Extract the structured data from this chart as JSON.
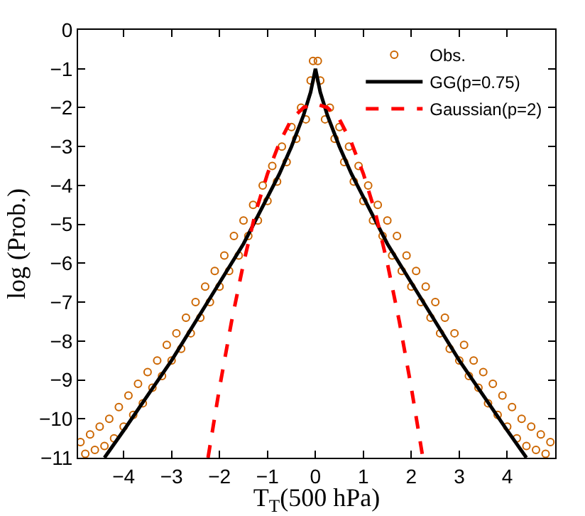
{
  "chart_data": {
    "type": "scatter",
    "xlabel": "T$_{T}$(500 hPa)",
    "ylabel": "log (Prob.)",
    "xlim": [
      -4.95,
      5
    ],
    "xticks": [
      {
        "value": -4,
        "label": "−4"
      },
      {
        "value": -3,
        "label": "−3"
      },
      {
        "value": -2,
        "label": "−2"
      },
      {
        "value": -1,
        "label": "−1"
      },
      0,
      1,
      2,
      3,
      4
    ],
    "ylim": [
      -11,
      0
    ],
    "yticks": [
      {
        "value": -11,
        "label": "−11"
      },
      {
        "value": -10,
        "label": "−10"
      },
      {
        "value": -9,
        "label": "−9"
      },
      {
        "value": -8,
        "label": "−8"
      },
      {
        "value": -7,
        "label": "−7"
      },
      {
        "value": -6,
        "label": "−6"
      },
      {
        "value": -5,
        "label": "−5"
      },
      {
        "value": -4,
        "label": "−4"
      },
      {
        "value": -3,
        "label": "−3"
      },
      {
        "value": -2,
        "label": "−2"
      },
      {
        "value": -1,
        "label": "−1"
      },
      0
    ],
    "grid": false,
    "legend": "top right",
    "series": [
      {
        "name": "Obs.",
        "marker": "circle",
        "color": "#cc6600",
        "x": [
          -4.9,
          -4.8,
          -4.7,
          -4.6,
          -4.5,
          -4.4,
          -4.3,
          -4.2,
          -4.1,
          -4.0,
          -3.9,
          -3.8,
          -3.7,
          -3.6,
          -3.5,
          -3.4,
          -3.3,
          -3.2,
          -3.1,
          -3.0,
          -2.9,
          -2.8,
          -2.7,
          -2.6,
          -2.5,
          -2.4,
          -2.3,
          -2.2,
          -2.1,
          -2.0,
          -1.9,
          -1.8,
          -1.7,
          -1.6,
          -1.5,
          -1.4,
          -1.3,
          -1.2,
          -1.1,
          -1.0,
          -0.9,
          -0.8,
          -0.7,
          -0.6,
          -0.5,
          -0.4,
          -0.3,
          -0.2,
          -0.1,
          -0.05,
          0.05,
          0.1,
          0.2,
          0.3,
          0.4,
          0.5,
          0.6,
          0.7,
          0.8,
          0.9,
          1.0,
          1.1,
          1.2,
          1.3,
          1.4,
          1.5,
          1.6,
          1.7,
          1.8,
          1.9,
          2.0,
          2.1,
          2.2,
          2.3,
          2.4,
          2.5,
          2.6,
          2.7,
          2.8,
          2.9,
          3.0,
          3.1,
          3.2,
          3.3,
          3.4,
          3.5,
          3.6,
          3.7,
          3.8,
          3.9,
          4.0,
          4.1,
          4.2,
          4.3,
          4.4,
          4.5,
          4.6,
          4.7,
          4.8,
          4.9
        ],
        "values": [
          -10.6,
          -10.9,
          -10.4,
          -10.8,
          -10.2,
          -10.7,
          -10.0,
          -10.5,
          -9.7,
          -10.2,
          -9.4,
          -9.9,
          -9.1,
          -9.6,
          -8.8,
          -9.2,
          -8.5,
          -8.9,
          -8.1,
          -8.5,
          -7.8,
          -8.2,
          -7.4,
          -7.8,
          -7.0,
          -7.4,
          -6.6,
          -7.0,
          -6.2,
          -6.6,
          -5.8,
          -6.2,
          -5.3,
          -5.8,
          -4.9,
          -5.3,
          -4.5,
          -4.9,
          -4.0,
          -4.4,
          -3.5,
          -3.9,
          -3.0,
          -3.4,
          -2.5,
          -2.8,
          -2.0,
          -2.3,
          -1.3,
          -0.8,
          -0.8,
          -1.3,
          -2.3,
          -2.0,
          -2.8,
          -2.5,
          -3.4,
          -3.0,
          -3.9,
          -3.5,
          -4.4,
          -4.0,
          -4.9,
          -4.5,
          -5.3,
          -4.9,
          -5.8,
          -5.3,
          -6.2,
          -5.8,
          -6.6,
          -6.2,
          -7.0,
          -6.6,
          -7.4,
          -7.0,
          -7.8,
          -7.4,
          -8.2,
          -7.8,
          -8.5,
          -8.1,
          -8.9,
          -8.5,
          -9.2,
          -8.8,
          -9.6,
          -9.1,
          -9.9,
          -9.4,
          -10.2,
          -9.7,
          -10.5,
          -10.0,
          -10.7,
          -10.2,
          -10.8,
          -10.4,
          -10.9,
          -10.6
        ]
      },
      {
        "name": "GG(p=0.75)",
        "type": "line",
        "marker": "none",
        "line_style": "solid",
        "color": "#000000",
        "x": [
          -4.4,
          -4,
          -3.5,
          -3,
          -2.5,
          -2,
          -1.5,
          -1,
          -0.75,
          -0.5,
          -0.25,
          -0.1,
          0,
          0.1,
          0.25,
          0.5,
          0.75,
          1,
          1.5,
          2,
          2.5,
          3,
          3.5,
          4,
          4.4
        ],
        "values": [
          -11.0,
          -10.3,
          -9.4,
          -8.5,
          -7.5,
          -6.5,
          -5.5,
          -4.3,
          -3.7,
          -3.0,
          -2.2,
          -1.6,
          -1.0,
          -1.6,
          -2.2,
          -3.0,
          -3.7,
          -4.3,
          -5.5,
          -6.5,
          -7.5,
          -8.5,
          -9.4,
          -10.3,
          -11.0
        ]
      },
      {
        "name": "Gaussian(p=2)",
        "type": "line",
        "marker": "none",
        "line_style": "dashed",
        "color": "#ff0000",
        "x": [
          -2.24,
          -2,
          -1.75,
          -1.5,
          -1.25,
          -1,
          -0.75,
          -0.5,
          -0.25,
          0,
          0.25,
          0.5,
          0.75,
          1,
          1.25,
          1.5,
          1.75,
          2,
          2.24
        ],
        "values": [
          -11.0,
          -9.2,
          -7.5,
          -6.0,
          -4.7,
          -3.7,
          -2.9,
          -2.3,
          -2.0,
          -1.9,
          -2.0,
          -2.3,
          -2.9,
          -3.7,
          -4.7,
          -6.0,
          -7.5,
          -9.2,
          -11.0
        ]
      }
    ]
  }
}
